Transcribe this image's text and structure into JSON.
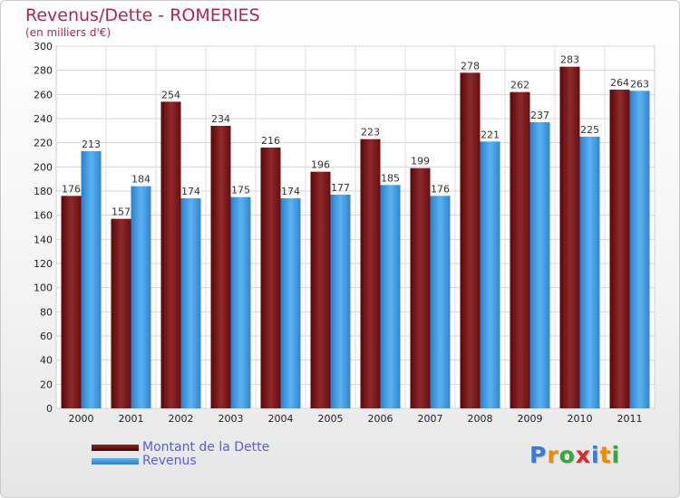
{
  "title": "Revenus/Dette - ROMERIES",
  "subtitle": "(en milliers d'€)",
  "logo": {
    "text": "Proxiti",
    "letter_colors": [
      "#3a7bd5",
      "#f08a00",
      "#3aa63a",
      "#d9262a",
      "#3a7bd5",
      "#f08a00",
      "#3aa63a"
    ]
  },
  "chart_data": {
    "type": "bar",
    "categories": [
      "2000",
      "2001",
      "2002",
      "2003",
      "2004",
      "2005",
      "2006",
      "2007",
      "2008",
      "2009",
      "2010",
      "2011"
    ],
    "series": [
      {
        "name": "Montant de la Dette",
        "values": [
          176,
          157,
          254,
          234,
          216,
          196,
          223,
          199,
          278,
          262,
          283,
          264
        ],
        "color": "#7a1518"
      },
      {
        "name": "Revenus",
        "values": [
          213,
          184,
          174,
          175,
          174,
          177,
          185,
          176,
          221,
          237,
          225,
          263
        ],
        "color": "#3b96df"
      }
    ],
    "ylim": [
      0,
      300
    ],
    "ytick_step": 20,
    "grid": true,
    "legend_position": "bottom-left"
  }
}
